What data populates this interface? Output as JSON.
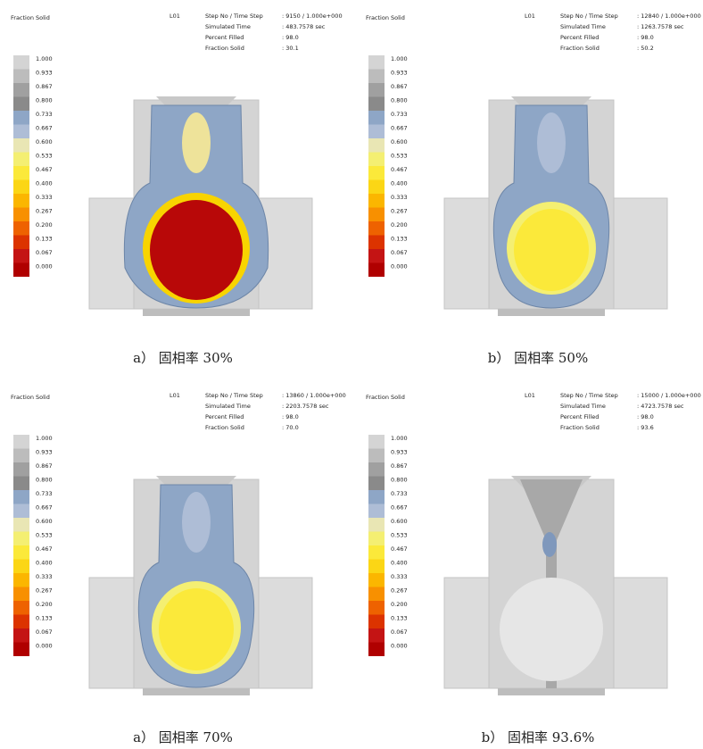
{
  "legend": {
    "title": "Fraction Solid",
    "labels": [
      "1.000",
      "0.933",
      "0.867",
      "0.800",
      "0.733",
      "0.667",
      "0.600",
      "0.533",
      "0.467",
      "0.400",
      "0.333",
      "0.267",
      "0.200",
      "0.133",
      "0.067",
      "0.000"
    ],
    "colors": [
      "#d4d4d4",
      "#bcbcbc",
      "#a0a0a0",
      "#8a8a8a",
      "#8ea6c6",
      "#aebdd6",
      "#e9e6b4",
      "#f4ef72",
      "#fbe93a",
      "#fbd615",
      "#fbb600",
      "#f89000",
      "#ee6200",
      "#dc3300",
      "#c41414",
      "#b00000"
    ]
  },
  "info_labels": [
    "Step No / Time Step",
    "Simulated Time",
    "Percent Filled",
    "Fraction Solid"
  ],
  "panels": [
    {
      "id": "L01",
      "values": [
        ": 9150 / 1.000e+000",
        ": 483.7578 sec",
        ": 98.0",
        ": 30.1"
      ],
      "caption": "a） 固相率 30%"
    },
    {
      "id": "L01",
      "values": [
        ": 12840 / 1.000e+000",
        ": 1263.7578 sec",
        ": 98.0",
        ": 50.2"
      ],
      "caption": "b） 固相率 50%"
    },
    {
      "id": "L01",
      "values": [
        ": 13860 / 1.000e+000",
        ": 2203.7578 sec",
        ": 98.0",
        ": 70.0"
      ],
      "caption": "a） 固相率 70%"
    },
    {
      "id": "L01",
      "values": [
        ": 15000 / 1.000e+000",
        ": 4723.7578 sec",
        ": 98.0",
        ": 93.6"
      ],
      "caption": "b） 固相率 93.6%"
    }
  ]
}
